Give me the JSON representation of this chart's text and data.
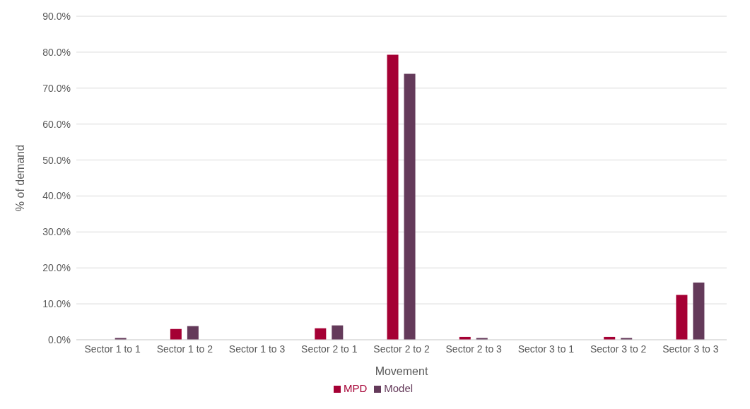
{
  "chart_data": {
    "type": "bar",
    "xlabel": "Movement",
    "ylabel": "% of demand",
    "categories": [
      "Sector 1 to 1",
      "Sector 1 to 2",
      "Sector 1 to 3",
      "Sector 2 to 1",
      "Sector 2 to 2",
      "Sector 2 to 3",
      "Sector 3 to 1",
      "Sector 3 to 2",
      "Sector 3 to 3"
    ],
    "series": [
      {
        "name": "MPD",
        "color": "#a50034",
        "values": [
          0,
          3.0,
          0,
          3.2,
          79.3,
          0.8,
          0,
          0.8,
          12.5
        ]
      },
      {
        "name": "Model",
        "color": "#643a5a",
        "values": [
          0.5,
          3.8,
          0,
          4.0,
          74.0,
          0.5,
          0,
          0.5,
          15.9
        ]
      }
    ],
    "ylim": [
      0,
      90
    ],
    "yticks": [
      {
        "value": 0,
        "label": "0.0%"
      },
      {
        "value": 10,
        "label": "10.0%"
      },
      {
        "value": 20,
        "label": "20.0%"
      },
      {
        "value": 30,
        "label": "30.0%"
      },
      {
        "value": 40,
        "label": "40.0%"
      },
      {
        "value": 50,
        "label": "50.0%"
      },
      {
        "value": 60,
        "label": "60.0%"
      },
      {
        "value": 70,
        "label": "70.0%"
      },
      {
        "value": 80,
        "label": "80.0%"
      },
      {
        "value": 90,
        "label": "90.0%"
      }
    ],
    "grid": "y",
    "legend": "bottom"
  }
}
